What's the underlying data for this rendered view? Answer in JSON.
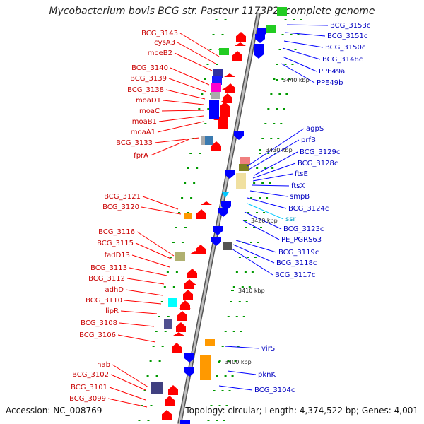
{
  "title": "Mycobacterium bovis BCG str. Pasteur 1173P2, complete genome",
  "footer": {
    "accession": "Accession: NC_008769",
    "summary": "Topology: circular; Length: 4,374,522 bp; Genes: 4,001"
  },
  "colors": {
    "reverse_gene": "#ff0000",
    "forward_gene": "#0000ff",
    "rna": "#00c8ff",
    "backbone": "#888888",
    "tick": "#009900"
  },
  "scale_labels": [
    "3440 kbp",
    "3430 kbp",
    "3420 kbp",
    "3410 kbp",
    "3400 kbp"
  ],
  "left_labels": [
    "BCG_3143",
    "cysA3",
    "moeB2",
    "BCG_3140",
    "BCG_3139",
    "BCG_3138",
    "moaD1",
    "moaC",
    "moaB1",
    "moaA1",
    "BCG_3133",
    "fprA",
    "BCG_3121",
    "BCG_3120",
    "BCG_3116",
    "BCG_3115",
    "fadD13",
    "BCG_3113",
    "BCG_3112",
    "adhD",
    "BCG_3110",
    "lipR",
    "BCG_3108",
    "BCG_3106",
    "hab",
    "BCG_3102",
    "BCG_3101",
    "BCG_3099"
  ],
  "right_labels": [
    "BCG_3153c",
    "BCG_3151c",
    "BCG_3150c",
    "BCG_3148c",
    "PPE49a",
    "PPE49b",
    "agpS",
    "prfB",
    "BCG_3129c",
    "BCG_3128c",
    "ftsE",
    "ftsX",
    "smpB",
    "BCG_3124c",
    "ssr",
    "BCG_3123c",
    "PE_PGRS63",
    "BCG_3119c",
    "BCG_3118c",
    "BCG_3117c",
    "virS",
    "pknK",
    "BCG_3104c"
  ]
}
